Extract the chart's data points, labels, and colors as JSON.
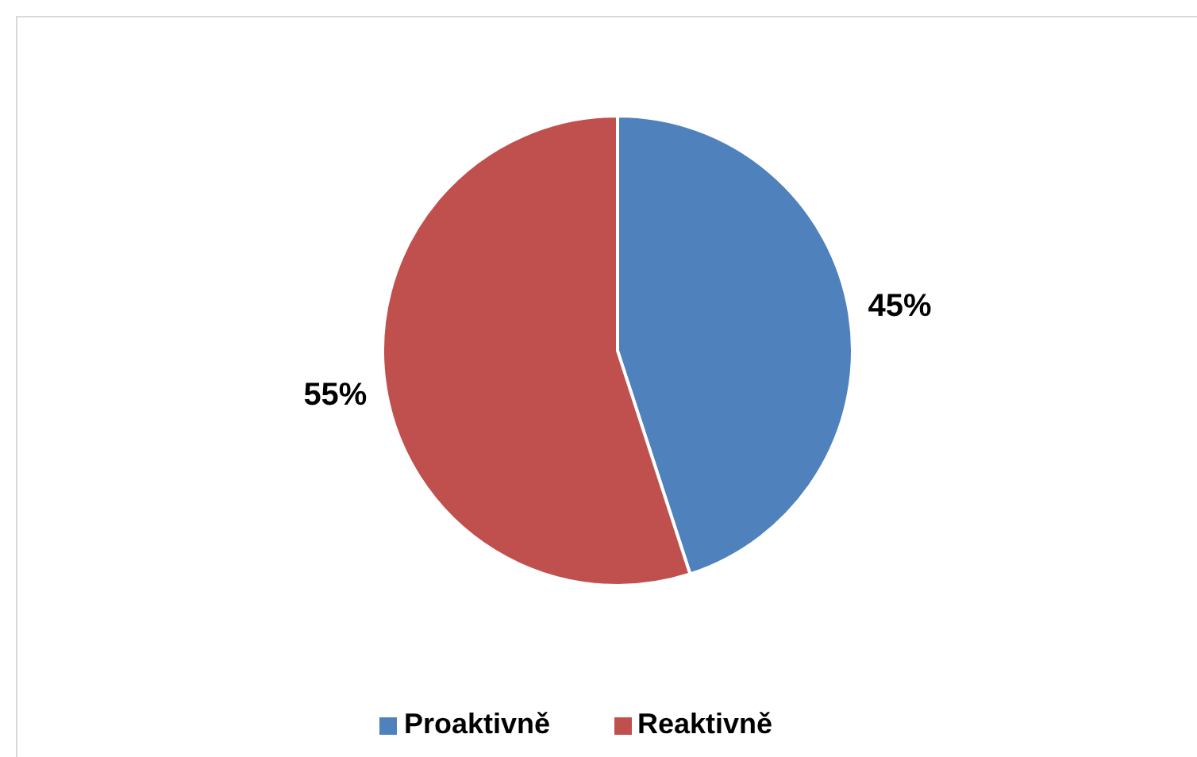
{
  "chart_data": {
    "type": "pie",
    "categories": [
      "Proaktivně",
      "Reaktivně"
    ],
    "values": [
      45,
      55
    ],
    "colors": [
      "#4f81bd",
      "#c0504d"
    ],
    "value_labels": [
      "45%",
      "55%"
    ],
    "legend": "bottom"
  }
}
